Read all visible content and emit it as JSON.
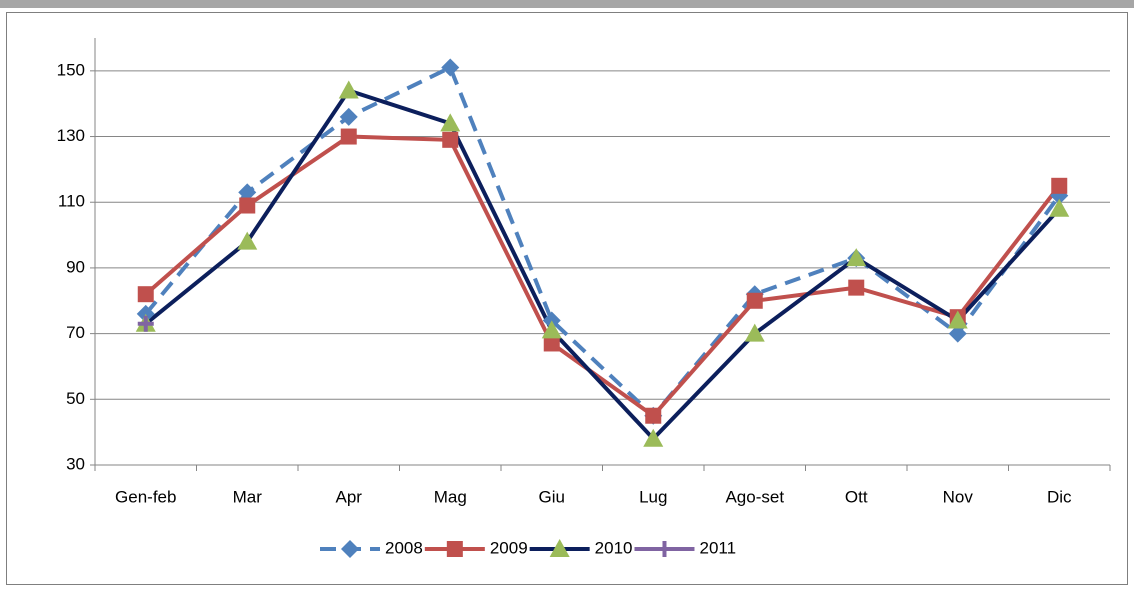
{
  "chart_data": {
    "type": "line",
    "categories": [
      "Gen-feb",
      "Mar",
      "Apr",
      "Mag",
      "Giu",
      "Lug",
      "Ago-set",
      "Ott",
      "Nov",
      "Dic"
    ],
    "series": [
      {
        "name": "2008",
        "color": "#4f81bd",
        "marker_color": "#4f81bd",
        "marker": "diamond",
        "dashed": true,
        "values": [
          76,
          113,
          136,
          151,
          74,
          45,
          82,
          93,
          70,
          112
        ]
      },
      {
        "name": "2009",
        "color": "#c0504d",
        "marker_color": "#c0504d",
        "marker": "square",
        "dashed": false,
        "values": [
          82,
          109,
          130,
          129,
          67,
          45,
          80,
          84,
          75,
          115
        ]
      },
      {
        "name": "2010",
        "color": "#0c1f5c",
        "marker_color": "#9bbb59",
        "marker": "triangle",
        "dashed": false,
        "values": [
          73,
          98,
          144,
          134,
          71,
          38,
          70,
          93,
          74,
          108
        ]
      },
      {
        "name": "2011",
        "color": "#8064a2",
        "marker_color": "#8064a2",
        "marker": "cross",
        "dashed": false,
        "values": [
          73,
          null,
          null,
          null,
          null,
          null,
          null,
          null,
          null,
          null
        ]
      }
    ],
    "ylim": [
      30,
      160
    ],
    "yticks": [
      30,
      50,
      70,
      90,
      110,
      130,
      150
    ],
    "grid": true,
    "legend": "bottom"
  }
}
